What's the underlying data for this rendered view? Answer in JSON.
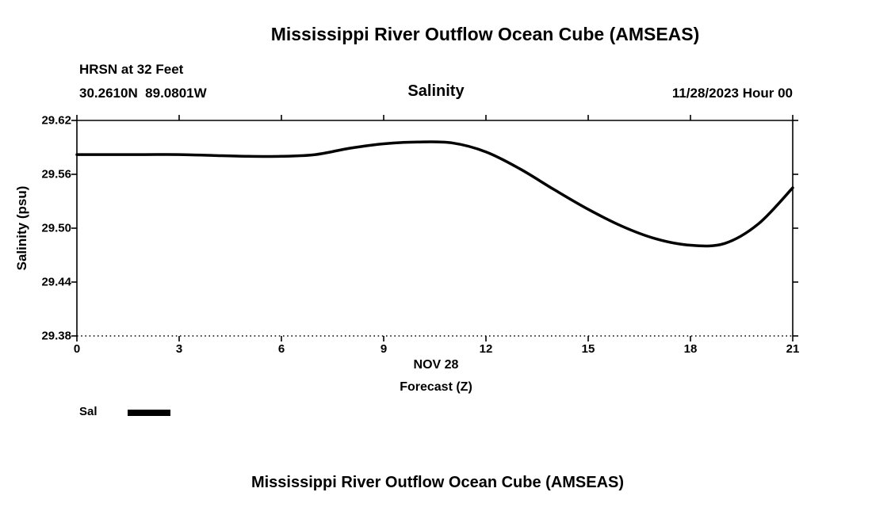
{
  "page": {
    "title_top": "Mississippi River Outflow Ocean Cube (AMSEAS)",
    "title_bottom": "Mississippi River Outflow Ocean Cube (AMSEAS)"
  },
  "header": {
    "station": "HRSN at 32 Feet",
    "coordinates": "30.2610N  89.0801W",
    "variable": "Salinity",
    "datetime": "11/28/2023 Hour 00"
  },
  "chart_data": {
    "type": "line",
    "title": "Salinity",
    "subtitle": "HRSN at 32 Feet, 30.2610N 89.0801W, 11/28/2023 Hour 00",
    "xlabel_line1": "NOV 28",
    "xlabel_line2": "Forecast (Z)",
    "ylabel": "Salinity (psu)",
    "xlim": [
      0,
      21
    ],
    "ylim": [
      29.38,
      29.62
    ],
    "x_ticks": [
      0,
      3,
      6,
      9,
      12,
      15,
      18,
      21
    ],
    "y_ticks": [
      29.38,
      29.44,
      29.5,
      29.56,
      29.62
    ],
    "grid": false,
    "legend_position": "bottom-left",
    "line_color": "#000000",
    "line_width": 3.5,
    "series": [
      {
        "name": "Sal",
        "x": [
          0,
          1,
          2,
          3,
          4,
          5,
          6,
          7,
          8,
          9,
          10,
          11,
          12,
          13,
          14,
          15,
          16,
          17,
          18,
          19,
          20,
          21
        ],
        "values": [
          29.582,
          29.582,
          29.582,
          29.582,
          29.581,
          29.58,
          29.58,
          29.582,
          29.589,
          29.594,
          29.596,
          29.595,
          29.585,
          29.566,
          29.543,
          29.521,
          29.502,
          29.488,
          29.481,
          29.483,
          29.505,
          29.545
        ]
      }
    ]
  }
}
